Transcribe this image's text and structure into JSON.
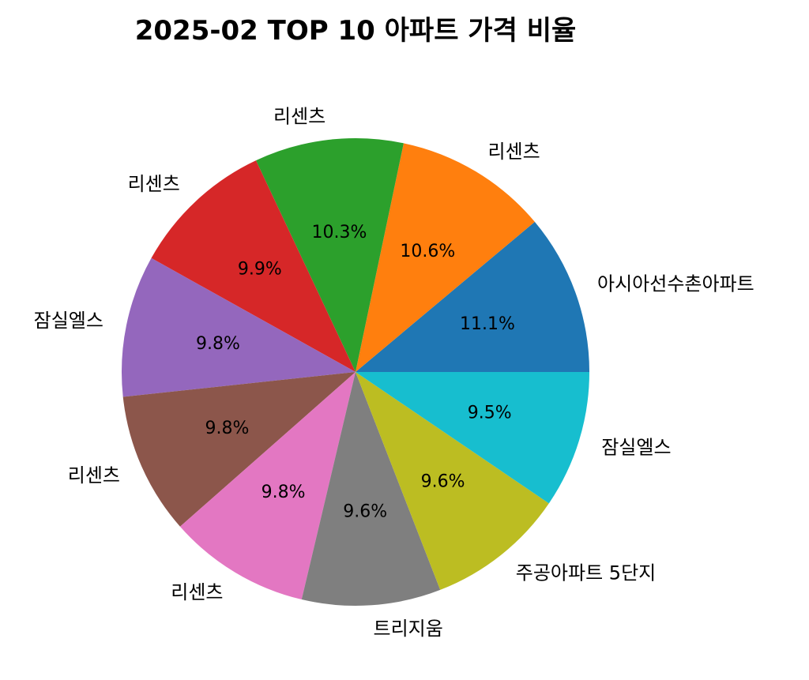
{
  "chart_data": {
    "type": "pie",
    "title": "2025-02 TOP 10 아파트 가격 비율",
    "start_angle_deg": 0,
    "direction": "counterclockwise",
    "slices": [
      {
        "label": "아시아선수촌아파트",
        "value": 11.1,
        "pct_label": "11.1%",
        "color": "#1f77b4"
      },
      {
        "label": "리센츠",
        "value": 10.6,
        "pct_label": "10.6%",
        "color": "#ff7f0e"
      },
      {
        "label": "리센츠",
        "value": 10.3,
        "pct_label": "10.3%",
        "color": "#2ca02c"
      },
      {
        "label": "리센츠",
        "value": 9.9,
        "pct_label": "9.9%",
        "color": "#d62728"
      },
      {
        "label": "잠실엘스",
        "value": 9.8,
        "pct_label": "9.8%",
        "color": "#9467bd"
      },
      {
        "label": "리센츠",
        "value": 9.8,
        "pct_label": "9.8%",
        "color": "#8c564b"
      },
      {
        "label": "리센츠",
        "value": 9.8,
        "pct_label": "9.8%",
        "color": "#e377c2"
      },
      {
        "label": "트리지움",
        "value": 9.6,
        "pct_label": "9.6%",
        "color": "#7f7f7f"
      },
      {
        "label": "주공아파트 5단지",
        "value": 9.6,
        "pct_label": "9.6%",
        "color": "#bcbd22"
      },
      {
        "label": "잠실엘스",
        "value": 9.5,
        "pct_label": "9.5%",
        "color": "#17becf"
      }
    ]
  }
}
